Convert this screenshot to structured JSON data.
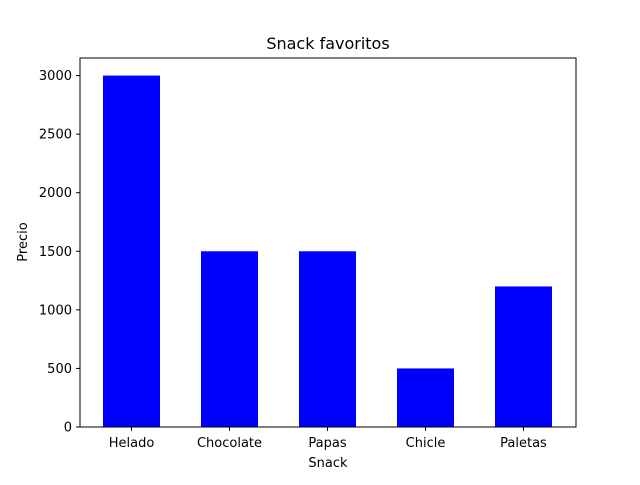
{
  "chart_data": {
    "type": "bar",
    "title": "Snack favoritos",
    "xlabel": "Snack",
    "ylabel": "Precio",
    "categories": [
      "Helado",
      "Chocolate",
      "Papas",
      "Chicle",
      "Paletas"
    ],
    "values": [
      3000,
      1500,
      1500,
      500,
      1200
    ],
    "ylim": [
      0,
      3150
    ],
    "yticks": [
      0,
      500,
      1000,
      1500,
      2000,
      2500,
      3000
    ],
    "bar_color": "#0000ff",
    "grid": false
  }
}
